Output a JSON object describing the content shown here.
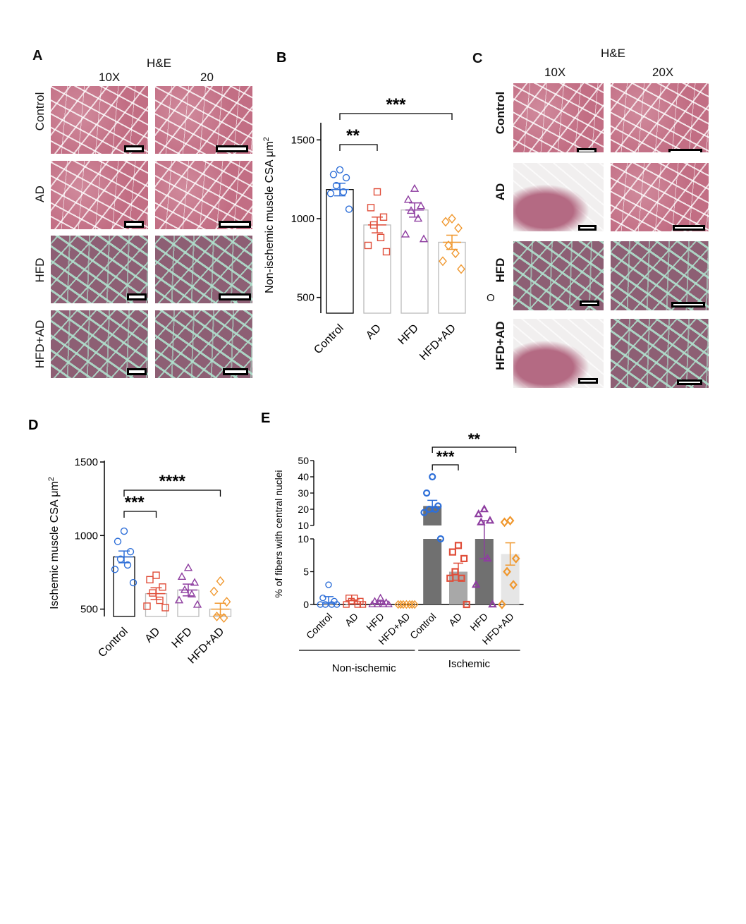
{
  "panels": {
    "A": {
      "letter": "A",
      "stain": "H&E",
      "col_labels": [
        "10X",
        "20"
      ],
      "row_labels": [
        "Control",
        "AD",
        "HFD",
        "HFD+AD"
      ]
    },
    "C": {
      "letter": "C",
      "stain": "H&E",
      "col_labels": [
        "10X",
        "20X"
      ],
      "row_labels": [
        "Control",
        "AD",
        "HFD",
        "HFD+AD"
      ],
      "stray_mark": "O"
    }
  },
  "chart_data": [
    {
      "panel": "B",
      "type": "bar",
      "ylabel_main": "Non-ischemic muscle CSA μm",
      "ylabel_sup": "2",
      "categories": [
        "Control",
        "AD",
        "HFD",
        "HFD+AD"
      ],
      "values": [
        1185,
        960,
        1055,
        850
      ],
      "sem": [
        40,
        50,
        45,
        45
      ],
      "ylim": [
        400,
        1600
      ],
      "yticks": [
        500,
        1000,
        1500
      ],
      "colors": [
        "#2e6fd8",
        "#e04e3a",
        "#8e3ea0",
        "#f0982f"
      ],
      "markers": [
        "circle",
        "square",
        "triangle",
        "diamond"
      ],
      "points": [
        [
          1310,
          1280,
          1260,
          1210,
          1170,
          1160,
          1060
        ],
        [
          1170,
          1070,
          1010,
          960,
          880,
          830,
          790
        ],
        [
          1190,
          1120,
          1080,
          1050,
          1000,
          900,
          870
        ],
        [
          1000,
          980,
          940,
          830,
          780,
          730,
          680
        ]
      ],
      "brackets": [
        {
          "from": 0,
          "to": 1,
          "label": "**"
        },
        {
          "from": 0,
          "to": 3,
          "label": "***"
        }
      ]
    },
    {
      "panel": "D",
      "type": "bar",
      "ylabel_main": "Ischemic muscle CSA μm",
      "ylabel_sup": "2",
      "categories": [
        "Control",
        "AD",
        "HFD",
        "HFD+AD"
      ],
      "values": [
        855,
        605,
        630,
        500
      ],
      "sem": [
        40,
        40,
        40,
        40
      ],
      "ylim": [
        450,
        1500
      ],
      "yticks": [
        500,
        1000,
        1500
      ],
      "colors": [
        "#2e6fd8",
        "#e04e3a",
        "#8e3ea0",
        "#f0982f"
      ],
      "markers": [
        "circle",
        "square",
        "triangle",
        "diamond"
      ],
      "points": [
        [
          1030,
          960,
          890,
          840,
          800,
          770,
          680
        ],
        [
          730,
          700,
          650,
          610,
          560,
          520,
          510
        ],
        [
          780,
          720,
          680,
          630,
          600,
          560,
          530
        ],
        [
          690,
          620,
          550,
          450,
          440
        ]
      ],
      "brackets": [
        {
          "from": 0,
          "to": 1,
          "label": "***"
        },
        {
          "from": 0,
          "to": 3,
          "label": "****"
        }
      ]
    },
    {
      "panel": "E",
      "type": "bar",
      "ylabel": "% of fibers with central nuclei",
      "categories": [
        "Control",
        "AD",
        "HFD",
        "HFD+AD",
        "Control",
        "AD",
        "HFD",
        "HFD+AD"
      ],
      "groups": [
        {
          "label": "Non-ischemic",
          "categories": [
            0,
            1,
            2,
            3
          ]
        },
        {
          "label": "Ischemic",
          "categories": [
            4,
            5,
            6,
            7
          ]
        }
      ],
      "values": [
        0.7,
        0.4,
        0.3,
        0,
        22,
        5,
        10,
        7.7
      ],
      "sem": [
        0.5,
        0.3,
        0.2,
        0,
        3.5,
        1.3,
        3,
        1.7
      ],
      "bar_fills": [
        "#ffffff",
        "#ffffff",
        "#ffffff",
        "#ffffff",
        "#707070",
        "#a8a8a8",
        "#707070",
        "#e6e6e6"
      ],
      "colors": [
        "#2e6fd8",
        "#e04e3a",
        "#8e3ea0",
        "#f0982f",
        "#2e6fd8",
        "#e04e3a",
        "#8e3ea0",
        "#f0982f"
      ],
      "markers": [
        "circle",
        "square",
        "triangle",
        "diamond",
        "circle",
        "square",
        "triangle",
        "diamond"
      ],
      "y_broken_axis": {
        "lower": {
          "range": [
            0,
            10
          ],
          "ticks": [
            0,
            5,
            10
          ]
        },
        "upper": {
          "range": [
            10,
            50
          ],
          "ticks": [
            10,
            20,
            30,
            40,
            50
          ]
        }
      },
      "points": [
        [
          3,
          1,
          0.5,
          0,
          0,
          0,
          0
        ],
        [
          1,
          1,
          0.5,
          0.5,
          0,
          0,
          0
        ],
        [
          1,
          0.5,
          0.3,
          0,
          0,
          0,
          0
        ],
        [
          0,
          0,
          0,
          0,
          0,
          0,
          0
        ],
        [
          40,
          30,
          22,
          20,
          20,
          18,
          10
        ],
        [
          9,
          8,
          7,
          5,
          4,
          4,
          0
        ],
        [
          20,
          17,
          13,
          12,
          7,
          3,
          0
        ],
        [
          13,
          12,
          7,
          5,
          3,
          0
        ]
      ],
      "brackets": [
        {
          "from": 4,
          "to": 5,
          "label": "***"
        },
        {
          "from": 4,
          "to": 7,
          "label": "**"
        }
      ]
    }
  ]
}
